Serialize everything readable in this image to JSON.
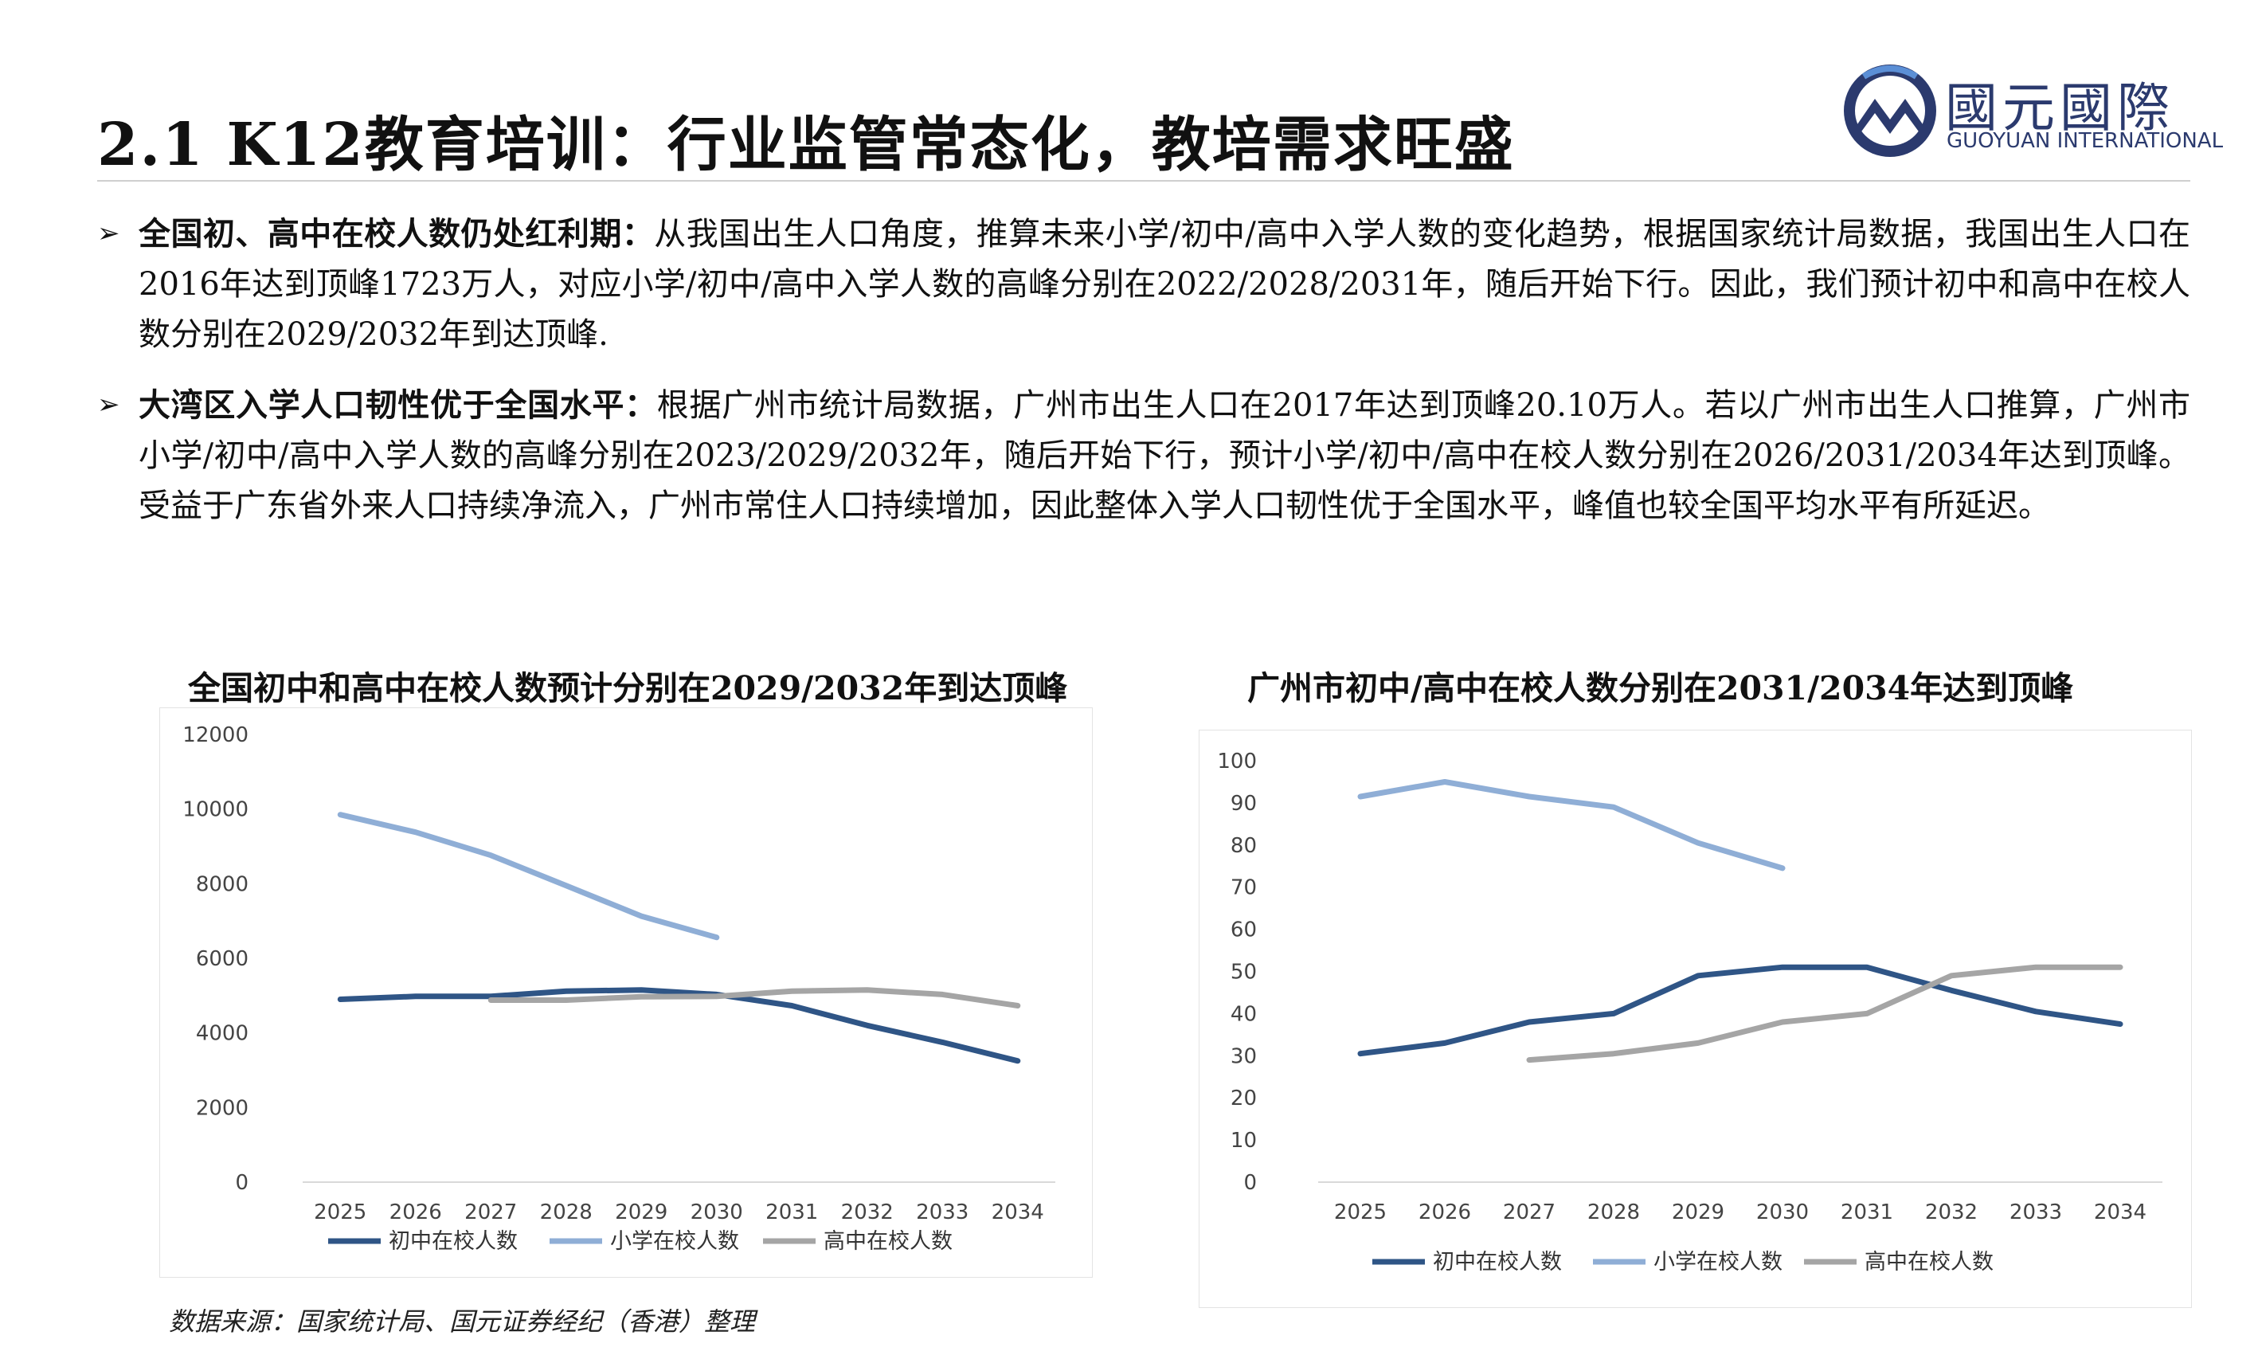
{
  "header": {
    "title": "2.1 K12教育培训：行业监管常态化，教培需求旺盛",
    "logo_cn": "國元國際",
    "logo_en": "GUOYUAN INTERNATIONAL"
  },
  "bullets": [
    {
      "lead": "全国初、高中在校人数仍处红利期：",
      "text": "从我国出生人口角度，推算未来小学/初中/高中入学人数的变化趋势，根据国家统计局数据，我国出生人口在2016年达到顶峰1723万人，对应小学/初中/高中入学人数的高峰分别在2022/2028/2031年，随后开始下行。因此，我们预计初中和高中在校人数分别在2029/2032年到达顶峰."
    },
    {
      "lead": "大湾区入学人口韧性优于全国水平：",
      "text": "根据广州市统计局数据，广州市出生人口在2017年达到顶峰20.10万人。若以广州市出生人口推算，广州市小学/初中/高中入学人数的高峰分别在2023/2029/2032年，随后开始下行，预计小学/初中/高中在校人数分别在2026/2031/2034年达到顶峰。受益于广东省外来人口持续净流入，广州市常住人口持续增加，因此整体入学人口韧性优于全国水平，峰值也较全国平均水平有所延迟。"
    }
  ],
  "source": "数据来源：国家统计局、国元证券经纪（香港）整理",
  "colors": {
    "junior": "#2f5586",
    "primary": "#8faed6",
    "senior": "#a5a5a5"
  },
  "chart_data": [
    {
      "type": "line",
      "title": "全国初中和高中在校人数预计分别在2029/2032年到达顶峰",
      "categories": [
        "2025",
        "2026",
        "2027",
        "2028",
        "2029",
        "2030",
        "2031",
        "2032",
        "2033",
        "2034"
      ],
      "ylim": [
        0,
        12000
      ],
      "yticks": [
        "0",
        "2000",
        "4000",
        "6000",
        "8000",
        "10000",
        "12000"
      ],
      "grid": false,
      "legend": "bottom",
      "series": [
        {
          "name": "初中在校人数",
          "values": [
            4900,
            4980,
            4980,
            5120,
            5150,
            5030,
            4730,
            4200,
            3750,
            3250
          ]
        },
        {
          "name": "小学在校人数",
          "values": [
            9850,
            9380,
            8760,
            7950,
            7130,
            6560,
            null,
            null,
            null,
            null
          ]
        },
        {
          "name": "高中在校人数",
          "values": [
            null,
            null,
            4880,
            4880,
            4970,
            4980,
            5120,
            5150,
            5030,
            4730
          ]
        }
      ]
    },
    {
      "type": "line",
      "title": "广州市初中/高中在校人数分别在2031/2034年达到顶峰",
      "categories": [
        "2025",
        "2026",
        "2027",
        "2028",
        "2029",
        "2030",
        "2031",
        "2032",
        "2033",
        "2034"
      ],
      "ylim": [
        0,
        100
      ],
      "yticks": [
        "0",
        "10",
        "20",
        "30",
        "40",
        "50",
        "60",
        "70",
        "80",
        "90",
        "100"
      ],
      "grid": false,
      "legend": "bottom",
      "series": [
        {
          "name": "初中在校人数",
          "values": [
            30.5,
            33,
            38,
            40,
            49,
            51,
            51,
            45.5,
            40.5,
            37.5
          ]
        },
        {
          "name": "小学在校人数",
          "values": [
            91.5,
            95,
            91.5,
            89,
            80.5,
            74.5,
            null,
            null,
            null,
            null
          ]
        },
        {
          "name": "高中在校人数",
          "values": [
            null,
            null,
            29,
            30.5,
            33,
            38,
            40,
            49,
            51,
            51
          ]
        }
      ]
    }
  ]
}
